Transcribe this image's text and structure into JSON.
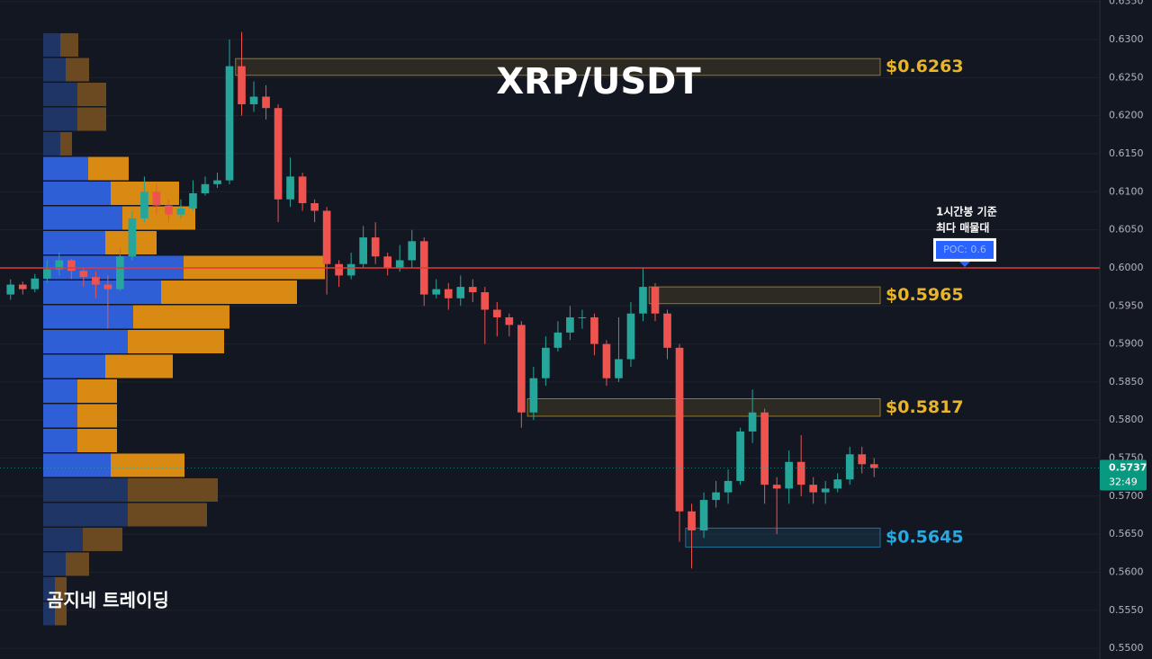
{
  "chart_data": {
    "type": "candlestick",
    "title": "XRP/USDT",
    "ylim": [
      0.5486,
      0.6352
    ],
    "yticks": [
      {
        "value": 0.55,
        "label": "0.5500"
      },
      {
        "value": 0.555,
        "label": "0.5550"
      },
      {
        "value": 0.56,
        "label": "0.5600"
      },
      {
        "value": 0.565,
        "label": "0.5650"
      },
      {
        "value": 0.57,
        "label": "0.5700"
      },
      {
        "value": 0.575,
        "label": "0.5750"
      },
      {
        "value": 0.58,
        "label": "0.5800"
      },
      {
        "value": 0.585,
        "label": "0.5850"
      },
      {
        "value": 0.59,
        "label": "0.5900"
      },
      {
        "value": 0.595,
        "label": "0.5950"
      },
      {
        "value": 0.6,
        "label": "0.6000"
      },
      {
        "value": 0.605,
        "label": "0.6050"
      },
      {
        "value": 0.61,
        "label": "0.6100"
      },
      {
        "value": 0.615,
        "label": "0.6150"
      },
      {
        "value": 0.62,
        "label": "0.6200"
      },
      {
        "value": 0.625,
        "label": "0.6250"
      },
      {
        "value": 0.63,
        "label": "0.6300"
      },
      {
        "value": 0.635,
        "label": "0.6350"
      }
    ],
    "grid": true,
    "up_color": "#26a69a",
    "down_color": "#ef5350",
    "ohlc": [
      [
        0.5965,
        0.5985,
        0.5958,
        0.5978
      ],
      [
        0.5978,
        0.5982,
        0.5965,
        0.5972
      ],
      [
        0.5972,
        0.5992,
        0.5968,
        0.5986
      ],
      [
        0.5986,
        0.601,
        0.598,
        0.5998
      ],
      [
        0.5998,
        0.602,
        0.599,
        0.601
      ],
      [
        0.601,
        0.6012,
        0.5985,
        0.5996
      ],
      [
        0.5996,
        0.6,
        0.5975,
        0.5988
      ],
      [
        0.5988,
        0.5995,
        0.596,
        0.5978
      ],
      [
        0.5978,
        0.599,
        0.592,
        0.5972
      ],
      [
        0.5972,
        0.6025,
        0.597,
        0.6015
      ],
      [
        0.6015,
        0.6075,
        0.601,
        0.6065
      ],
      [
        0.6065,
        0.612,
        0.606,
        0.61
      ],
      [
        0.61,
        0.611,
        0.607,
        0.6082
      ],
      [
        0.6082,
        0.609,
        0.606,
        0.607
      ],
      [
        0.607,
        0.609,
        0.6065,
        0.6078
      ],
      [
        0.6078,
        0.6115,
        0.6075,
        0.6098
      ],
      [
        0.6098,
        0.612,
        0.6095,
        0.611
      ],
      [
        0.611,
        0.6125,
        0.6105,
        0.6115
      ],
      [
        0.6115,
        0.63,
        0.611,
        0.6265
      ],
      [
        0.6265,
        0.631,
        0.62,
        0.6215
      ],
      [
        0.6215,
        0.6245,
        0.6205,
        0.6225
      ],
      [
        0.6225,
        0.624,
        0.6195,
        0.621
      ],
      [
        0.621,
        0.6215,
        0.606,
        0.609
      ],
      [
        0.609,
        0.6145,
        0.608,
        0.612
      ],
      [
        0.612,
        0.6125,
        0.6075,
        0.6085
      ],
      [
        0.6085,
        0.609,
        0.606,
        0.6075
      ],
      [
        0.6075,
        0.608,
        0.5965,
        0.6005
      ],
      [
        0.6005,
        0.601,
        0.5975,
        0.599
      ],
      [
        0.599,
        0.602,
        0.5985,
        0.6005
      ],
      [
        0.6005,
        0.6055,
        0.6,
        0.604
      ],
      [
        0.604,
        0.606,
        0.6005,
        0.6015
      ],
      [
        0.6015,
        0.602,
        0.599,
        0.6
      ],
      [
        0.6,
        0.603,
        0.5995,
        0.601
      ],
      [
        0.601,
        0.605,
        0.6,
        0.6035
      ],
      [
        0.6035,
        0.604,
        0.595,
        0.5965
      ],
      [
        0.5965,
        0.5985,
        0.596,
        0.5972
      ],
      [
        0.5972,
        0.598,
        0.5945,
        0.596
      ],
      [
        0.596,
        0.599,
        0.595,
        0.5975
      ],
      [
        0.5975,
        0.5985,
        0.5955,
        0.5968
      ],
      [
        0.5968,
        0.5975,
        0.59,
        0.5945
      ],
      [
        0.5945,
        0.5955,
        0.591,
        0.5935
      ],
      [
        0.5935,
        0.594,
        0.591,
        0.5925
      ],
      [
        0.5925,
        0.593,
        0.579,
        0.581
      ],
      [
        0.581,
        0.587,
        0.58,
        0.5855
      ],
      [
        0.5855,
        0.591,
        0.5845,
        0.5895
      ],
      [
        0.5895,
        0.593,
        0.589,
        0.5915
      ],
      [
        0.5915,
        0.595,
        0.5905,
        0.5935
      ],
      [
        0.5935,
        0.5945,
        0.592,
        0.5935
      ],
      [
        0.5935,
        0.594,
        0.5885,
        0.59
      ],
      [
        0.59,
        0.5905,
        0.5845,
        0.5855
      ],
      [
        0.5855,
        0.5935,
        0.585,
        0.588
      ],
      [
        0.588,
        0.5955,
        0.587,
        0.594
      ],
      [
        0.594,
        0.6,
        0.593,
        0.5975
      ],
      [
        0.5975,
        0.598,
        0.593,
        0.594
      ],
      [
        0.594,
        0.5945,
        0.588,
        0.5895
      ],
      [
        0.5895,
        0.59,
        0.564,
        0.568
      ],
      [
        0.568,
        0.569,
        0.5605,
        0.5655
      ],
      [
        0.5655,
        0.5705,
        0.5645,
        0.5695
      ],
      [
        0.5695,
        0.572,
        0.5685,
        0.5705
      ],
      [
        0.5705,
        0.5735,
        0.569,
        0.572
      ],
      [
        0.572,
        0.579,
        0.5715,
        0.5785
      ],
      [
        0.5785,
        0.584,
        0.577,
        0.581
      ],
      [
        0.581,
        0.5815,
        0.569,
        0.5715
      ],
      [
        0.5715,
        0.5725,
        0.565,
        0.571
      ],
      [
        0.571,
        0.576,
        0.569,
        0.5745
      ],
      [
        0.5745,
        0.578,
        0.57,
        0.5715
      ],
      [
        0.5715,
        0.5725,
        0.569,
        0.5705
      ],
      [
        0.5705,
        0.572,
        0.569,
        0.571
      ],
      [
        0.571,
        0.573,
        0.5705,
        0.5722
      ],
      [
        0.5722,
        0.5765,
        0.5715,
        0.5755
      ],
      [
        0.5755,
        0.5765,
        0.573,
        0.5742
      ],
      [
        0.5742,
        0.575,
        0.5725,
        0.5737
      ]
    ],
    "zones": [
      {
        "label": "$0.6263",
        "top": 0.6275,
        "bottom": 0.6253,
        "start": 19,
        "color": "#e8b52a"
      },
      {
        "label": "$0.5965",
        "top": 0.5975,
        "bottom": 0.5953,
        "start": 53,
        "color": "#e8b52a"
      },
      {
        "label": "$0.5817",
        "top": 0.5828,
        "bottom": 0.5805,
        "start": 43,
        "color": "#e8b52a"
      },
      {
        "label": "$0.5645",
        "top": 0.5658,
        "bottom": 0.5633,
        "start": 56,
        "color": "#29a8e0"
      }
    ],
    "poc": {
      "value": 0.6,
      "label": "POC: 0.6",
      "note": [
        "1시간봉 기준",
        "최다 매물대"
      ],
      "color": "#e53935"
    },
    "last_price": {
      "value": 0.5737,
      "label": "0.5737",
      "countdown": "32:49"
    },
    "volume_profile": {
      "buy": [
        19,
        25,
        38,
        38,
        19,
        50,
        75,
        88,
        69,
        156,
        131,
        100,
        94,
        69,
        38,
        38,
        38,
        75,
        94,
        94,
        44,
        25,
        13,
        13
      ],
      "sell": [
        20,
        26,
        32,
        32,
        13,
        45,
        76,
        81,
        57,
        157,
        151,
        107,
        107,
        75,
        44,
        44,
        44,
        82,
        100,
        88,
        44,
        26,
        13,
        13
      ],
      "value_area": [
        5,
        17
      ]
    },
    "watermark": "곰지네 트레이딩"
  }
}
